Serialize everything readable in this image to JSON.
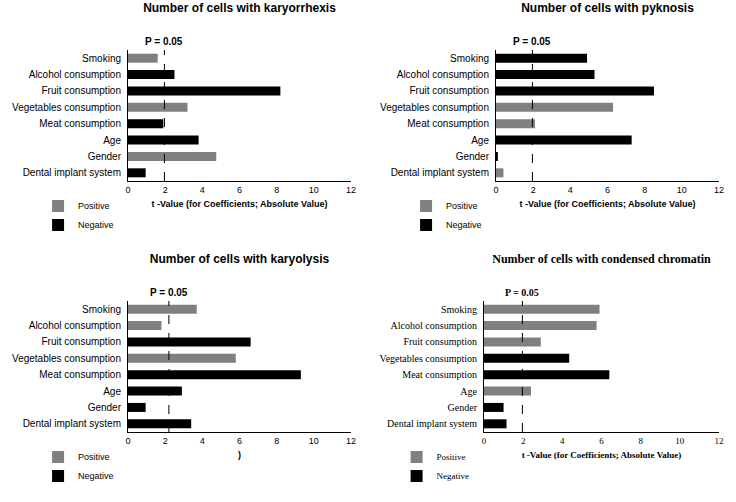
{
  "chart_data": [
    {
      "type": "bar",
      "orientation": "horizontal",
      "title": "Number of cells with karyorrhexis",
      "categories": [
        "Smoking",
        "Alcohol consumption",
        "Fruit consumption",
        "Vegetables consumption",
        "Meat consumption",
        "Age",
        "Gender",
        "Dental implant system"
      ],
      "series": [
        {
          "name": "Positive",
          "color": "#808080",
          "values": [
            1.6,
            null,
            null,
            3.2,
            null,
            null,
            4.75,
            null
          ]
        },
        {
          "name": "Negative",
          "color": "#000000",
          "values": [
            null,
            2.5,
            8.2,
            null,
            1.9,
            3.8,
            null,
            0.95
          ]
        }
      ],
      "xlim": [
        0,
        12
      ],
      "xticks": [
        0,
        2,
        4,
        6,
        8,
        10,
        12
      ],
      "xlabel": "t -Value (for Coefficients; Absolute Value)",
      "reference_line": {
        "value": 1.96,
        "label": "P = 0.05"
      },
      "legend": "bottom left",
      "grid": false
    },
    {
      "type": "bar",
      "orientation": "horizontal",
      "title": "Number of cells with pyknosis",
      "categories": [
        "Smoking",
        "Alcohol consumption",
        "Fruit consumption",
        "Vegetables consumption",
        "Meat consumption",
        "Age",
        "Gender",
        "Dental implant system"
      ],
      "series": [
        {
          "name": "Positive",
          "color": "#808080",
          "values": [
            null,
            null,
            null,
            6.3,
            2.1,
            null,
            null,
            0.4
          ]
        },
        {
          "name": "Negative",
          "color": "#000000",
          "values": [
            4.9,
            5.3,
            8.5,
            null,
            null,
            7.3,
            0.1,
            null
          ]
        }
      ],
      "xlim": [
        0,
        12
      ],
      "xticks": [
        0,
        2,
        4,
        6,
        8,
        10,
        12
      ],
      "xlabel": "t -Value (for Coefficients; Absolute Value)",
      "reference_line": {
        "value": 1.96,
        "label": "P = 0.05"
      },
      "legend": "bottom left",
      "grid": false
    },
    {
      "type": "bar",
      "orientation": "horizontal",
      "title": "Number of cells with karyolysis",
      "categories": [
        "Smoking",
        "Alcohol consumption",
        "Fruit consumption",
        "Vegetables consumption",
        "Meat consumption",
        "Age",
        "Gender",
        "Dental implant system"
      ],
      "series": [
        {
          "name": "Positive",
          "color": "#808080",
          "values": [
            3.7,
            1.8,
            null,
            5.8,
            null,
            null,
            null,
            null
          ]
        },
        {
          "name": "Negative",
          "color": "#000000",
          "values": [
            null,
            null,
            6.6,
            null,
            9.3,
            2.9,
            0.95,
            3.4
          ]
        }
      ],
      "xlim": [
        0,
        12
      ],
      "xticks": [
        0,
        2,
        4,
        6,
        8,
        10,
        12
      ],
      "xlabel": ")",
      "reference_line": {
        "value": 2.2,
        "label": "P = 0.05"
      },
      "legend": "bottom left",
      "grid": false
    },
    {
      "type": "bar",
      "orientation": "horizontal",
      "title": "Number of cells with condensed chromatin",
      "categories": [
        "Smoking",
        "Alcohol consumption",
        "Fruit consumption",
        "Vegetables consumption",
        "Meat consumption",
        "Age",
        "Gender",
        "Dental implant system"
      ],
      "series": [
        {
          "name": "Positive",
          "color": "#808080",
          "values": [
            5.9,
            5.75,
            2.9,
            null,
            null,
            2.4,
            null,
            null
          ]
        },
        {
          "name": "Negative",
          "color": "#000000",
          "values": [
            null,
            null,
            null,
            4.35,
            6.4,
            null,
            1.0,
            1.15
          ]
        }
      ],
      "xlim": [
        0,
        12
      ],
      "xticks": [
        0,
        2,
        4,
        6,
        8,
        10,
        12
      ],
      "xlabel": "t -Value (for Coefficients; Absolute Value)",
      "reference_line": {
        "value": 1.96,
        "label": "P = 0.05"
      },
      "legend": "bottom left",
      "grid": false
    }
  ]
}
